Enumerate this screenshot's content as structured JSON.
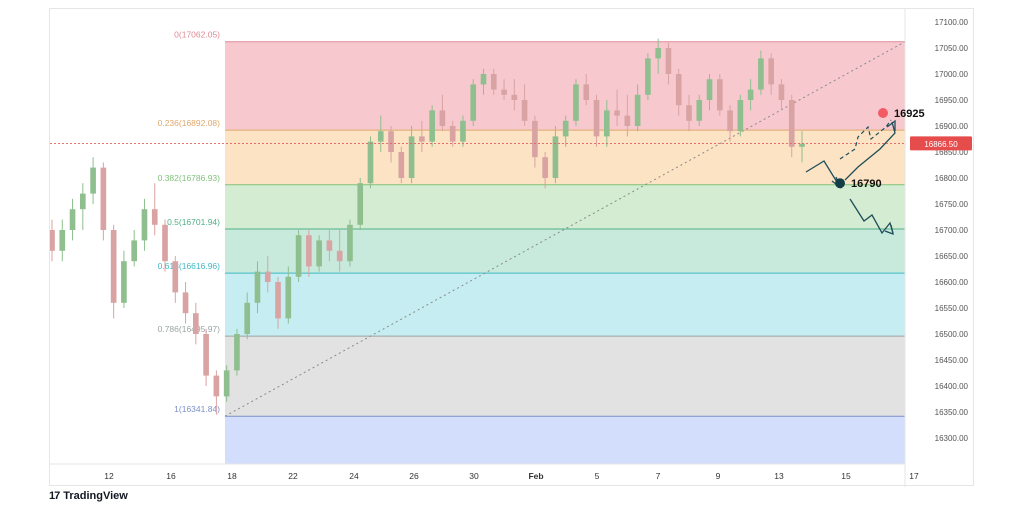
{
  "brand": {
    "name": "TradingView",
    "icon": "tradingview-logo-icon"
  },
  "chart_data": {
    "type": "candlestick",
    "title": "",
    "x_ticks": [
      "12",
      "16",
      "18",
      "22",
      "24",
      "26",
      "30",
      "Feb",
      "5",
      "7",
      "9",
      "13",
      "15",
      "17"
    ],
    "y_ticks": [
      17100,
      17050,
      17000,
      16950,
      16900,
      16850,
      16800,
      16750,
      16700,
      16650,
      16600,
      16550,
      16500,
      16450,
      16400,
      16350,
      16300
    ],
    "ylim": [
      16250,
      17125
    ],
    "current_price": {
      "label": "16866.50",
      "value": 16866.5
    },
    "fibonacci_levels": [
      {
        "label": "0(17062.05)",
        "ratio": "0",
        "price": 17062.05,
        "fill": "#f7c9cf",
        "line": "#e08a95"
      },
      {
        "label": "0.236(16892.08)",
        "ratio": "0.236",
        "price": 16892.08,
        "fill": "#fce3c4",
        "line": "#e0a86a"
      },
      {
        "label": "0.382(16786.93)",
        "ratio": "0.382",
        "price": 16786.93,
        "fill": "#d4ecd2",
        "line": "#7fc27a"
      },
      {
        "label": "0.5(16701.94)",
        "ratio": "0.5",
        "price": 16701.94,
        "fill": "#c8eadc",
        "line": "#4fb088"
      },
      {
        "label": "0.618(16616.96)",
        "ratio": "0.618",
        "price": 16616.96,
        "fill": "#c6eef2",
        "line": "#3fb8c4"
      },
      {
        "label": "0.786(16495.97)",
        "ratio": "0.786",
        "price": 16495.97,
        "fill": "#e2e2e2",
        "line": "#9aa4a4"
      },
      {
        "label": "1(16341.84)",
        "ratio": "1",
        "price": 16341.84,
        "fill": "#d3defc",
        "line": "#7d8fc7"
      }
    ],
    "annotations": [
      {
        "label": "16925",
        "price": 16925,
        "color": "#f25b64"
      },
      {
        "label": "16790",
        "price": 16790,
        "color": "#123f46"
      }
    ],
    "candles": [
      {
        "o": 16700,
        "h": 16720,
        "l": 16640,
        "c": 16660
      },
      {
        "o": 16660,
        "h": 16720,
        "l": 16640,
        "c": 16700
      },
      {
        "o": 16700,
        "h": 16760,
        "l": 16680,
        "c": 16740
      },
      {
        "o": 16740,
        "h": 16790,
        "l": 16700,
        "c": 16770
      },
      {
        "o": 16770,
        "h": 16840,
        "l": 16750,
        "c": 16820
      },
      {
        "o": 16820,
        "h": 16830,
        "l": 16680,
        "c": 16700
      },
      {
        "o": 16700,
        "h": 16710,
        "l": 16530,
        "c": 16560
      },
      {
        "o": 16560,
        "h": 16660,
        "l": 16550,
        "c": 16640
      },
      {
        "o": 16640,
        "h": 16700,
        "l": 16630,
        "c": 16680
      },
      {
        "o": 16680,
        "h": 16760,
        "l": 16660,
        "c": 16740
      },
      {
        "o": 16740,
        "h": 16790,
        "l": 16690,
        "c": 16710
      },
      {
        "o": 16710,
        "h": 16720,
        "l": 16620,
        "c": 16640
      },
      {
        "o": 16640,
        "h": 16650,
        "l": 16560,
        "c": 16580
      },
      {
        "o": 16580,
        "h": 16600,
        "l": 16520,
        "c": 16540
      },
      {
        "o": 16540,
        "h": 16560,
        "l": 16480,
        "c": 16500
      },
      {
        "o": 16500,
        "h": 16510,
        "l": 16400,
        "c": 16420
      },
      {
        "o": 16420,
        "h": 16430,
        "l": 16345,
        "c": 16380
      },
      {
        "o": 16380,
        "h": 16440,
        "l": 16370,
        "c": 16430
      },
      {
        "o": 16430,
        "h": 16510,
        "l": 16420,
        "c": 16500
      },
      {
        "o": 16500,
        "h": 16580,
        "l": 16490,
        "c": 16560
      },
      {
        "o": 16560,
        "h": 16640,
        "l": 16540,
        "c": 16620
      },
      {
        "o": 16620,
        "h": 16650,
        "l": 16580,
        "c": 16600
      },
      {
        "o": 16600,
        "h": 16610,
        "l": 16510,
        "c": 16530
      },
      {
        "o": 16530,
        "h": 16630,
        "l": 16520,
        "c": 16610
      },
      {
        "o": 16610,
        "h": 16700,
        "l": 16600,
        "c": 16690
      },
      {
        "o": 16690,
        "h": 16700,
        "l": 16610,
        "c": 16630
      },
      {
        "o": 16630,
        "h": 16690,
        "l": 16620,
        "c": 16680
      },
      {
        "o": 16680,
        "h": 16700,
        "l": 16640,
        "c": 16660
      },
      {
        "o": 16660,
        "h": 16700,
        "l": 16620,
        "c": 16640
      },
      {
        "o": 16640,
        "h": 16720,
        "l": 16630,
        "c": 16710
      },
      {
        "o": 16710,
        "h": 16800,
        "l": 16700,
        "c": 16790
      },
      {
        "o": 16790,
        "h": 16880,
        "l": 16780,
        "c": 16870
      },
      {
        "o": 16870,
        "h": 16920,
        "l": 16850,
        "c": 16890
      },
      {
        "o": 16890,
        "h": 16900,
        "l": 16830,
        "c": 16850
      },
      {
        "o": 16850,
        "h": 16860,
        "l": 16790,
        "c": 16800
      },
      {
        "o": 16800,
        "h": 16900,
        "l": 16790,
        "c": 16880
      },
      {
        "o": 16880,
        "h": 16910,
        "l": 16850,
        "c": 16870
      },
      {
        "o": 16870,
        "h": 16940,
        "l": 16860,
        "c": 16930
      },
      {
        "o": 16930,
        "h": 16960,
        "l": 16890,
        "c": 16900
      },
      {
        "o": 16900,
        "h": 16910,
        "l": 16860,
        "c": 16870
      },
      {
        "o": 16870,
        "h": 16920,
        "l": 16860,
        "c": 16910
      },
      {
        "o": 16910,
        "h": 16990,
        "l": 16900,
        "c": 16980
      },
      {
        "o": 16980,
        "h": 17010,
        "l": 16960,
        "c": 17000
      },
      {
        "o": 17000,
        "h": 17010,
        "l": 16960,
        "c": 16970
      },
      {
        "o": 16970,
        "h": 16990,
        "l": 16950,
        "c": 16960
      },
      {
        "o": 16960,
        "h": 16990,
        "l": 16930,
        "c": 16950
      },
      {
        "o": 16950,
        "h": 16980,
        "l": 16900,
        "c": 16910
      },
      {
        "o": 16910,
        "h": 16920,
        "l": 16820,
        "c": 16840
      },
      {
        "o": 16840,
        "h": 16850,
        "l": 16780,
        "c": 16800
      },
      {
        "o": 16800,
        "h": 16900,
        "l": 16790,
        "c": 16880
      },
      {
        "o": 16880,
        "h": 16920,
        "l": 16860,
        "c": 16910
      },
      {
        "o": 16910,
        "h": 16990,
        "l": 16900,
        "c": 16980
      },
      {
        "o": 16980,
        "h": 17000,
        "l": 16940,
        "c": 16950
      },
      {
        "o": 16950,
        "h": 16960,
        "l": 16860,
        "c": 16880
      },
      {
        "o": 16880,
        "h": 16950,
        "l": 16860,
        "c": 16930
      },
      {
        "o": 16930,
        "h": 16970,
        "l": 16900,
        "c": 16920
      },
      {
        "o": 16920,
        "h": 16960,
        "l": 16880,
        "c": 16900
      },
      {
        "o": 16900,
        "h": 16980,
        "l": 16890,
        "c": 16960
      },
      {
        "o": 16960,
        "h": 17040,
        "l": 16950,
        "c": 17030
      },
      {
        "o": 17030,
        "h": 17068,
        "l": 17000,
        "c": 17050
      },
      {
        "o": 17050,
        "h": 17060,
        "l": 16980,
        "c": 17000
      },
      {
        "o": 17000,
        "h": 17010,
        "l": 16920,
        "c": 16940
      },
      {
        "o": 16940,
        "h": 16960,
        "l": 16890,
        "c": 16910
      },
      {
        "o": 16910,
        "h": 16960,
        "l": 16900,
        "c": 16950
      },
      {
        "o": 16950,
        "h": 17000,
        "l": 16930,
        "c": 16990
      },
      {
        "o": 16990,
        "h": 17000,
        "l": 16920,
        "c": 16930
      },
      {
        "o": 16930,
        "h": 16940,
        "l": 16870,
        "c": 16890
      },
      {
        "o": 16890,
        "h": 16960,
        "l": 16880,
        "c": 16950
      },
      {
        "o": 16950,
        "h": 16990,
        "l": 16930,
        "c": 16970
      },
      {
        "o": 16970,
        "h": 17045,
        "l": 16960,
        "c": 17030
      },
      {
        "o": 17030,
        "h": 17040,
        "l": 16960,
        "c": 16980
      },
      {
        "o": 16980,
        "h": 16990,
        "l": 16930,
        "c": 16950
      },
      {
        "o": 16950,
        "h": 16960,
        "l": 16840,
        "c": 16860
      },
      {
        "o": 16860,
        "h": 16890,
        "l": 16830,
        "c": 16866
      }
    ],
    "projection": "price expected to dip to 16790 then rise to 16925, alternative drop toward 16700"
  }
}
